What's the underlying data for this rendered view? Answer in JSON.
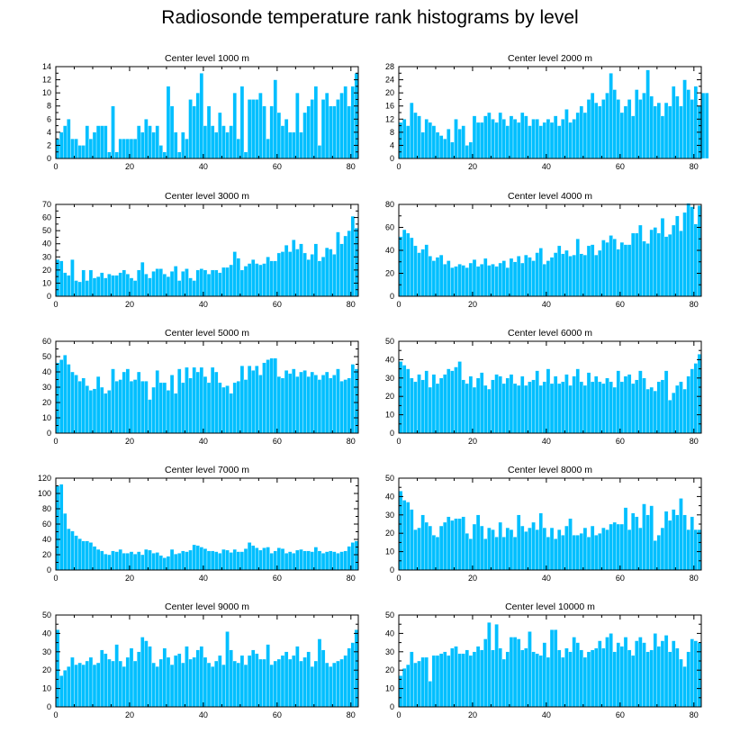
{
  "title": "Radiosonde temperature rank histograms by level",
  "chart_data": [
    {
      "type": "bar",
      "title": "Center level 1000 m",
      "xlim": [
        0,
        82
      ],
      "ylim": [
        0,
        14
      ],
      "xticks": [
        0,
        20,
        40,
        60,
        80
      ],
      "yticks": [
        0,
        2,
        4,
        6,
        8,
        10,
        12,
        14
      ],
      "values": [
        3,
        4,
        5,
        6,
        3,
        3,
        2,
        2,
        5,
        3,
        4,
        5,
        5,
        5,
        1,
        8,
        1,
        3,
        3,
        3,
        3,
        3,
        5,
        4,
        6,
        5,
        4,
        5,
        2,
        1,
        11,
        8,
        4,
        1,
        4,
        3,
        9,
        8,
        10,
        13,
        5,
        8,
        5,
        4,
        7,
        5,
        4,
        5,
        10,
        3,
        11,
        1,
        9,
        9,
        9,
        10,
        8,
        3,
        8,
        12,
        7,
        5,
        6,
        4,
        4,
        10,
        4,
        7,
        8,
        9,
        11,
        2,
        9,
        10,
        8,
        8,
        9,
        10,
        11,
        8,
        11,
        13
      ]
    },
    {
      "type": "bar",
      "title": "Center level 2000 m",
      "xlim": [
        0,
        82
      ],
      "ylim": [
        0,
        28
      ],
      "xticks": [
        0,
        20,
        40,
        60,
        80
      ],
      "yticks": [
        0,
        4,
        8,
        12,
        16,
        20,
        24,
        28
      ],
      "values": [
        11,
        12,
        10,
        17,
        14,
        13,
        8,
        12,
        11,
        10,
        8,
        7,
        6,
        9,
        5,
        12,
        9,
        10,
        4,
        5,
        13,
        11,
        11,
        13,
        14,
        12,
        11,
        14,
        12,
        10,
        13,
        12,
        11,
        14,
        13,
        10,
        12,
        12,
        10,
        11,
        12,
        11,
        13,
        10,
        12,
        15,
        11,
        12,
        14,
        16,
        14,
        18,
        20,
        17,
        16,
        18,
        20,
        26,
        21,
        18,
        14,
        16,
        18,
        13,
        21,
        18,
        20,
        27,
        19,
        16,
        17,
        13,
        17,
        16,
        22,
        19,
        16,
        24,
        21,
        18,
        22,
        16,
        20,
        20
      ]
    },
    {
      "type": "bar",
      "title": "Center level 3000 m",
      "xlim": [
        0,
        82
      ],
      "ylim": [
        0,
        70
      ],
      "xticks": [
        0,
        20,
        40,
        60,
        80
      ],
      "yticks": [
        0,
        10,
        20,
        30,
        40,
        50,
        60,
        70
      ],
      "values": [
        28,
        27,
        18,
        16,
        28,
        12,
        11,
        20,
        12,
        20,
        14,
        15,
        18,
        14,
        17,
        16,
        16,
        18,
        20,
        17,
        14,
        12,
        20,
        26,
        17,
        14,
        19,
        21,
        21,
        17,
        15,
        19,
        23,
        12,
        19,
        21,
        14,
        12,
        20,
        21,
        20,
        17,
        20,
        20,
        18,
        22,
        22,
        24,
        34,
        29,
        20,
        23,
        25,
        28,
        25,
        24,
        25,
        30,
        27,
        27,
        33,
        34,
        39,
        34,
        43,
        36,
        40,
        33,
        28,
        32,
        40,
        27,
        30,
        37,
        36,
        32,
        49,
        40,
        46,
        50,
        61,
        52
      ]
    },
    {
      "type": "bar",
      "title": "Center level 4000 m",
      "xlim": [
        0,
        82
      ],
      "ylim": [
        0,
        80
      ],
      "xticks": [
        0,
        20,
        40,
        60,
        80
      ],
      "yticks": [
        0,
        20,
        40,
        60,
        80
      ],
      "values": [
        52,
        58,
        55,
        51,
        44,
        38,
        41,
        45,
        35,
        31,
        34,
        36,
        28,
        31,
        25,
        26,
        28,
        27,
        25,
        29,
        32,
        26,
        28,
        33,
        27,
        28,
        26,
        29,
        31,
        25,
        33,
        30,
        35,
        29,
        36,
        34,
        31,
        38,
        42,
        28,
        31,
        34,
        38,
        44,
        37,
        40,
        35,
        36,
        50,
        37,
        36,
        44,
        45,
        36,
        40,
        49,
        47,
        53,
        50,
        41,
        47,
        45,
        45,
        55,
        55,
        62,
        48,
        46,
        58,
        60,
        55,
        68,
        52,
        54,
        62,
        70,
        57,
        73,
        81,
        78,
        63,
        79
      ]
    },
    {
      "type": "bar",
      "title": "Center level 5000 m",
      "xlim": [
        0,
        82
      ],
      "ylim": [
        0,
        60
      ],
      "xticks": [
        0,
        20,
        40,
        60,
        80
      ],
      "yticks": [
        0,
        10,
        20,
        30,
        40,
        50,
        60
      ],
      "values": [
        46,
        48,
        51,
        45,
        40,
        38,
        34,
        36,
        31,
        28,
        29,
        37,
        30,
        26,
        28,
        42,
        34,
        35,
        40,
        42,
        34,
        35,
        40,
        34,
        34,
        22,
        30,
        41,
        33,
        33,
        28,
        38,
        26,
        42,
        33,
        43,
        36,
        43,
        40,
        43,
        37,
        33,
        43,
        40,
        33,
        30,
        31,
        26,
        33,
        34,
        44,
        35,
        44,
        41,
        44,
        38,
        46,
        48,
        49,
        49,
        37,
        36,
        41,
        39,
        42,
        37,
        40,
        41,
        37,
        40,
        38,
        35,
        38,
        40,
        36,
        38,
        42,
        34,
        35,
        36,
        45,
        42
      ]
    },
    {
      "type": "bar",
      "title": "Center level 6000 m",
      "xlim": [
        0,
        82
      ],
      "ylim": [
        0,
        50
      ],
      "xticks": [
        0,
        20,
        40,
        60,
        80
      ],
      "yticks": [
        0,
        10,
        20,
        30,
        40,
        50
      ],
      "values": [
        39,
        37,
        35,
        30,
        28,
        32,
        29,
        34,
        25,
        32,
        27,
        30,
        32,
        35,
        34,
        36,
        39,
        29,
        27,
        31,
        25,
        30,
        33,
        26,
        24,
        29,
        32,
        31,
        27,
        30,
        32,
        27,
        26,
        31,
        26,
        28,
        29,
        34,
        26,
        28,
        35,
        27,
        31,
        27,
        28,
        32,
        26,
        31,
        35,
        28,
        26,
        33,
        28,
        31,
        28,
        27,
        30,
        28,
        25,
        34,
        28,
        31,
        32,
        27,
        29,
        34,
        30,
        24,
        25,
        23,
        28,
        29,
        34,
        18,
        22,
        26,
        28,
        24,
        31,
        35,
        38,
        43
      ]
    },
    {
      "type": "bar",
      "title": "Center level 7000 m",
      "xlim": [
        0,
        82
      ],
      "ylim": [
        0,
        120
      ],
      "xticks": [
        0,
        20,
        40,
        60,
        80
      ],
      "yticks": [
        0,
        20,
        40,
        60,
        80,
        100,
        120
      ],
      "values": [
        110,
        112,
        74,
        54,
        51,
        45,
        41,
        38,
        38,
        36,
        31,
        27,
        25,
        21,
        20,
        25,
        24,
        27,
        22,
        22,
        24,
        21,
        24,
        20,
        27,
        26,
        22,
        23,
        19,
        16,
        18,
        27,
        21,
        22,
        25,
        24,
        26,
        33,
        32,
        30,
        28,
        25,
        25,
        24,
        22,
        27,
        26,
        23,
        27,
        24,
        24,
        28,
        36,
        32,
        29,
        26,
        29,
        30,
        22,
        25,
        29,
        28,
        22,
        24,
        22,
        26,
        27,
        25,
        25,
        24,
        30,
        25,
        22,
        24,
        25,
        24,
        22,
        24,
        25,
        31,
        36,
        38
      ]
    },
    {
      "type": "bar",
      "title": "Center level 8000 m",
      "xlim": [
        0,
        82
      ],
      "ylim": [
        0,
        50
      ],
      "xticks": [
        0,
        20,
        40,
        60,
        80
      ],
      "yticks": [
        0,
        10,
        20,
        30,
        40,
        50
      ],
      "values": [
        43,
        38,
        37,
        33,
        22,
        23,
        30,
        26,
        24,
        19,
        18,
        24,
        26,
        29,
        27,
        28,
        28,
        29,
        20,
        17,
        25,
        30,
        24,
        17,
        23,
        22,
        18,
        26,
        18,
        23,
        22,
        18,
        30,
        24,
        21,
        23,
        26,
        22,
        31,
        23,
        18,
        23,
        17,
        22,
        19,
        24,
        28,
        19,
        19,
        20,
        23,
        18,
        24,
        19,
        20,
        23,
        22,
        25,
        26,
        25,
        25,
        34,
        22,
        31,
        29,
        23,
        36,
        30,
        35,
        16,
        19,
        23,
        32,
        27,
        33,
        30,
        39,
        30,
        22,
        29,
        22,
        22
      ]
    },
    {
      "type": "bar",
      "title": "Center level 9000 m",
      "xlim": [
        0,
        82
      ],
      "ylim": [
        0,
        50
      ],
      "xticks": [
        0,
        20,
        40,
        60,
        80
      ],
      "yticks": [
        0,
        10,
        20,
        30,
        40,
        50
      ],
      "values": [
        42,
        17,
        20,
        22,
        27,
        23,
        24,
        23,
        25,
        27,
        23,
        24,
        31,
        29,
        26,
        25,
        34,
        25,
        22,
        27,
        32,
        25,
        30,
        38,
        36,
        33,
        24,
        22,
        26,
        32,
        27,
        23,
        28,
        29,
        24,
        33,
        26,
        27,
        31,
        33,
        27,
        24,
        22,
        25,
        28,
        23,
        41,
        31,
        25,
        24,
        28,
        23,
        28,
        31,
        29,
        26,
        26,
        34,
        23,
        25,
        26,
        28,
        30,
        26,
        28,
        33,
        25,
        27,
        30,
        22,
        25,
        37,
        31,
        24,
        22,
        24,
        25,
        26,
        28,
        32,
        35,
        42
      ]
    },
    {
      "type": "bar",
      "title": "Center level 10000 m",
      "xlim": [
        0,
        82
      ],
      "ylim": [
        0,
        50
      ],
      "xticks": [
        0,
        20,
        40,
        60,
        80
      ],
      "yticks": [
        0,
        10,
        20,
        30,
        40,
        50
      ],
      "values": [
        17,
        21,
        23,
        30,
        24,
        25,
        27,
        27,
        14,
        28,
        28,
        29,
        30,
        28,
        32,
        33,
        29,
        29,
        31,
        28,
        30,
        33,
        31,
        37,
        46,
        31,
        45,
        32,
        26,
        30,
        38,
        38,
        37,
        31,
        32,
        41,
        30,
        29,
        28,
        35,
        27,
        42,
        42,
        31,
        27,
        32,
        30,
        38,
        35,
        31,
        27,
        30,
        31,
        32,
        36,
        32,
        38,
        40,
        30,
        35,
        33,
        38,
        31,
        28,
        36,
        38,
        35,
        30,
        31,
        40,
        33,
        36,
        39,
        30,
        36,
        32,
        26,
        22,
        30,
        37,
        36,
        35
      ]
    }
  ]
}
